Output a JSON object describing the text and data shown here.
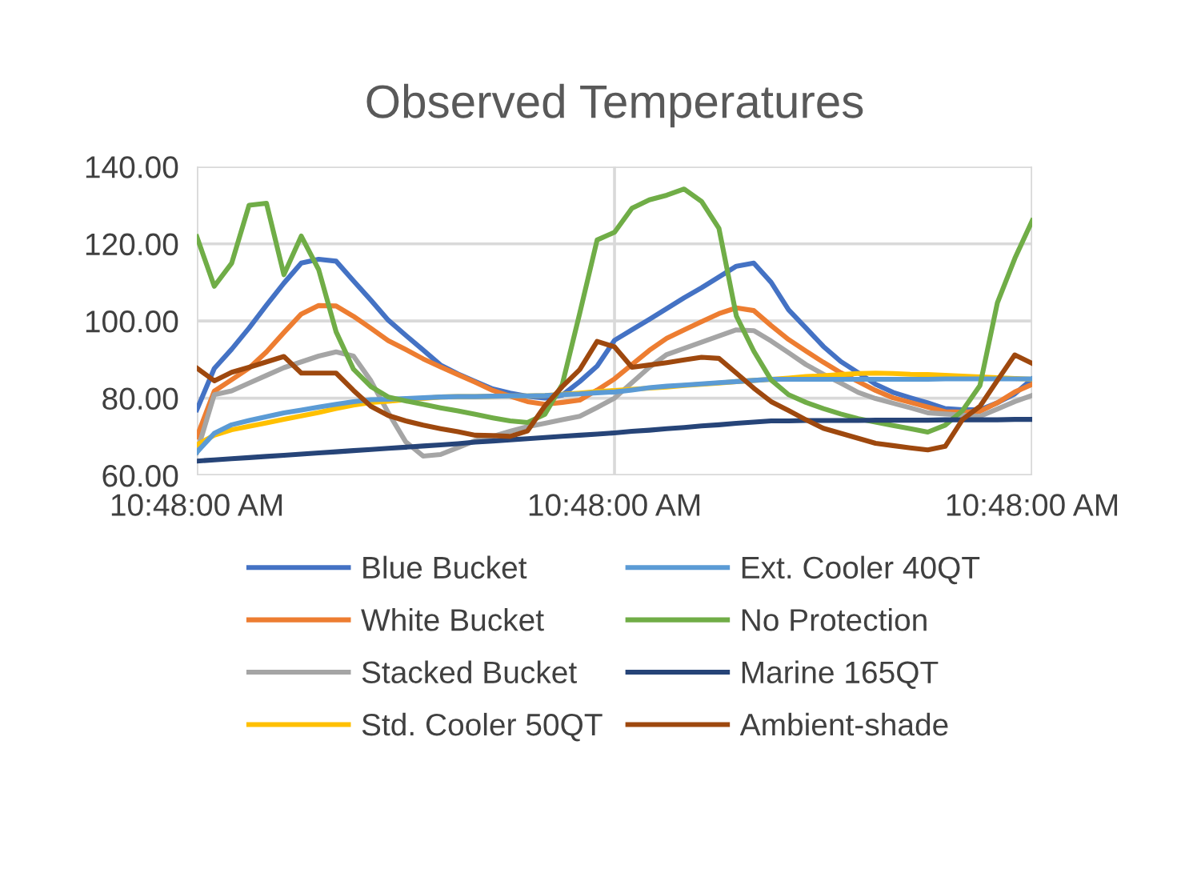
{
  "chart_data": {
    "type": "line",
    "title": "Observed Temperatures",
    "categories": [
      "10:48:00 AM",
      null,
      null,
      null,
      null,
      null,
      null,
      null,
      null,
      null,
      null,
      null,
      null,
      null,
      null,
      null,
      null,
      null,
      null,
      null,
      null,
      null,
      null,
      null,
      "10:48:00 AM",
      null,
      null,
      null,
      null,
      null,
      null,
      null,
      null,
      null,
      null,
      null,
      null,
      null,
      null,
      null,
      null,
      null,
      null,
      null,
      null,
      null,
      null,
      null,
      "10:48:00 AM"
    ],
    "ylim": [
      60,
      140
    ],
    "yticks": [
      {
        "value": 60,
        "label": "60.00"
      },
      {
        "value": 80,
        "label": "80.00"
      },
      {
        "value": 100,
        "label": "100.00"
      },
      {
        "value": 120,
        "label": "120.00"
      },
      {
        "value": 140,
        "label": "140.00"
      }
    ],
    "grid": true,
    "legend": "bottom",
    "marker": "none",
    "line_style": "solid",
    "series": [
      {
        "name": "Blue Bucket",
        "color": "#4472c4",
        "values": [
          77,
          87.7,
          92.7,
          98.2,
          104.1,
          109.8,
          115,
          116,
          115.5,
          110.4,
          105.4,
          100.2,
          96.3,
          92.5,
          88.6,
          86.3,
          84.3,
          82.4,
          81.3,
          80.5,
          80,
          80.8,
          84.3,
          88.3,
          95,
          97.7,
          100.4,
          103.2,
          106,
          108.6,
          111.4,
          114.2,
          115,
          110,
          102.9,
          98.2,
          93.4,
          89.5,
          86.6,
          83.6,
          81.5,
          80.1,
          78.8,
          77.3,
          77,
          77,
          78.8,
          81.1,
          85
        ]
      },
      {
        "name": "White Bucket",
        "color": "#ed7d31",
        "values": [
          70,
          81.8,
          84.8,
          87.8,
          92,
          97,
          101.8,
          104,
          103.9,
          101.2,
          98.1,
          94.9,
          92.6,
          90.2,
          88.1,
          86.1,
          84.1,
          82,
          80.5,
          79.1,
          78.4,
          78.9,
          79.5,
          82.1,
          85,
          88.7,
          92.4,
          95.5,
          97.7,
          99.8,
          101.9,
          103.4,
          102.7,
          98.8,
          95.2,
          92.2,
          89.3,
          86.6,
          84.3,
          82,
          80.1,
          78.9,
          77.7,
          76.5,
          76.4,
          76.6,
          78.8,
          81.6,
          83.6
        ]
      },
      {
        "name": "Stacked Bucket",
        "color": "#a5a5a5",
        "values": [
          66,
          80.9,
          81.9,
          83.9,
          85.9,
          87.9,
          89.4,
          90.9,
          92,
          90.9,
          84.5,
          76.2,
          68.7,
          65,
          65.4,
          67.2,
          69,
          70.1,
          71.4,
          72.6,
          73.5,
          74.4,
          75.3,
          77.6,
          80,
          84,
          88,
          91.3,
          92.9,
          94.5,
          96.1,
          97.7,
          97.5,
          94.8,
          91.8,
          88.7,
          86.2,
          83.9,
          81.5,
          79.9,
          78.7,
          77.5,
          76.2,
          75.9,
          75.6,
          75.3,
          77.2,
          79.1,
          80.7
        ]
      },
      {
        "name": "Std. Cooler 50QT",
        "color": "#ffc000",
        "values": [
          67.9,
          70.4,
          71.8,
          72.7,
          73.6,
          74.5,
          75.4,
          76.3,
          77.3,
          78.2,
          78.9,
          79.2,
          79.6,
          79.9,
          80.3,
          80.4,
          80.4,
          80.5,
          80.6,
          80.6,
          80.7,
          81,
          81.3,
          81.7,
          82,
          82.3,
          82.6,
          82.9,
          83.3,
          83.6,
          83.9,
          84.3,
          84.6,
          84.9,
          85.2,
          85.6,
          85.8,
          86.1,
          86.4,
          86.5,
          86.4,
          86.2,
          86.1,
          85.9,
          85.7,
          85.5,
          85.3,
          85.1,
          84.9
        ]
      },
      {
        "name": "Ext. Cooler 40QT",
        "color": "#5b9bd5",
        "values": [
          66,
          70.9,
          73.1,
          74.2,
          75.2,
          76.2,
          76.9,
          77.7,
          78.4,
          79.1,
          79.6,
          79.7,
          79.9,
          80.1,
          80.3,
          80.4,
          80.4,
          80.5,
          80.6,
          80.6,
          80.7,
          80.9,
          81.1,
          81.4,
          81.6,
          82.1,
          82.7,
          83.1,
          83.4,
          83.7,
          84,
          84.3,
          84.6,
          84.9,
          84.9,
          84.9,
          84.9,
          84.9,
          84.9,
          84.9,
          84.9,
          84.9,
          84.9,
          85,
          85,
          85,
          85,
          85,
          85
        ]
      },
      {
        "name": "No Protection",
        "color": "#70ad47",
        "values": [
          121.8,
          109,
          115,
          130,
          130.5,
          112,
          122,
          113.3,
          97.2,
          87.5,
          83,
          80.3,
          79.3,
          78.4,
          77.5,
          76.7,
          75.8,
          74.9,
          74.1,
          73.7,
          75.8,
          83.6,
          102,
          121,
          123,
          129.2,
          131.4,
          132.6,
          134.2,
          131,
          124,
          101.3,
          92.2,
          84.7,
          80.9,
          78.9,
          77.3,
          75.9,
          74.7,
          73.8,
          72.9,
          72.1,
          71.2,
          73,
          76.8,
          83.3,
          104.7,
          116.2,
          126
        ]
      },
      {
        "name": "Marine 165QT",
        "color": "#264478",
        "values": [
          63.7,
          64,
          64.3,
          64.6,
          64.9,
          65.2,
          65.5,
          65.8,
          66.1,
          66.4,
          66.7,
          67,
          67.3,
          67.6,
          67.9,
          68.2,
          68.6,
          68.9,
          69.2,
          69.5,
          69.8,
          70.1,
          70.4,
          70.7,
          71,
          71.4,
          71.7,
          72.1,
          72.4,
          72.8,
          73.1,
          73.5,
          73.8,
          74.1,
          74.1,
          74.2,
          74.2,
          74.2,
          74.2,
          74.3,
          74.3,
          74.3,
          74.3,
          74.4,
          74.4,
          74.4,
          74.4,
          74.5,
          74.5
        ]
      },
      {
        "name": "Ambient-shade",
        "color": "#9e480e",
        "values": [
          87.8,
          84.5,
          86.7,
          88,
          89.4,
          90.8,
          86.5,
          86.5,
          86.5,
          82,
          77.9,
          75.5,
          74.1,
          73,
          72.1,
          71.3,
          70.4,
          70.3,
          70.1,
          71.5,
          78,
          83,
          87.4,
          94.7,
          93.3,
          88,
          88.6,
          89.2,
          89.9,
          90.6,
          90.3,
          86.5,
          82.6,
          79.1,
          76.8,
          74.4,
          72.2,
          70.9,
          69.6,
          68.3,
          67.7,
          67.1,
          66.6,
          67.5,
          74.5,
          77.9,
          84.6,
          91.2,
          89
        ]
      }
    ]
  }
}
